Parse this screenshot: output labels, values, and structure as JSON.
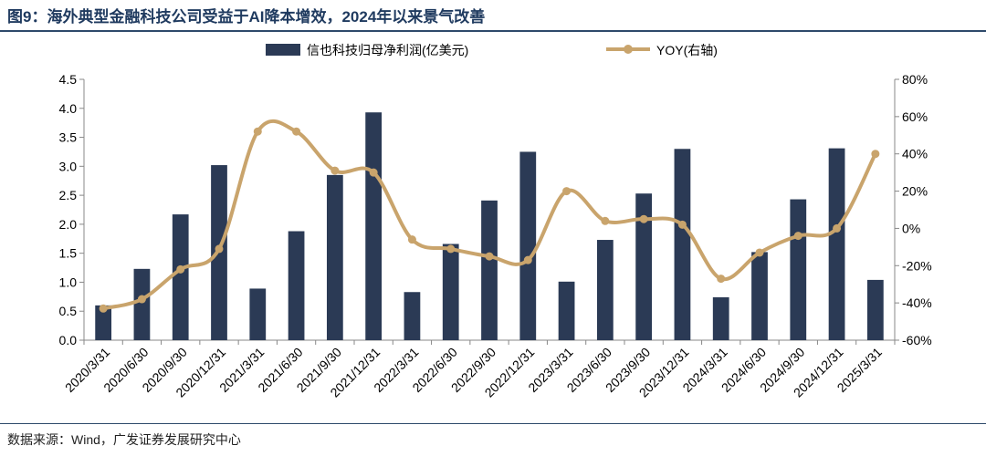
{
  "page": {
    "title": "图9：海外典型金融科技公司受益于AI降本增效，2024年以来景气改善",
    "source": "数据来源：Wind，广发证券发展研究中心"
  },
  "chart_data": {
    "type": "bar+line",
    "title": "图9：海外典型金融科技公司受益于AI降本增效，2024年以来景气改善",
    "categories": [
      "2020/3/31",
      "2020/6/30",
      "2020/9/30",
      "2020/12/31",
      "2021/3/31",
      "2021/6/30",
      "2021/9/30",
      "2021/12/31",
      "2022/3/31",
      "2022/6/30",
      "2022/9/30",
      "2022/12/31",
      "2023/3/31",
      "2023/6/30",
      "2023/9/30",
      "2023/12/31",
      "2024/3/31",
      "2024/6/30",
      "2024/9/30",
      "2024/12/31",
      "2025/3/31"
    ],
    "series": [
      {
        "name": "信也科技归母净利润(亿美元)",
        "type": "bar",
        "axis": "left",
        "color": "#2b3a55",
        "values": [
          0.6,
          1.23,
          2.17,
          3.02,
          0.89,
          1.88,
          2.85,
          3.93,
          0.83,
          1.66,
          2.41,
          3.25,
          1.01,
          1.73,
          2.53,
          3.3,
          0.74,
          1.52,
          2.43,
          3.31,
          1.04
        ]
      },
      {
        "name": "YOY(右轴)",
        "type": "line",
        "axis": "right",
        "color": "#c9a46c",
        "values": [
          -43,
          -38,
          -22,
          -11,
          52,
          52,
          31,
          30,
          -6,
          -11,
          -15,
          -17,
          20,
          4,
          5,
          2,
          -27,
          -13,
          -4,
          0,
          40
        ]
      }
    ],
    "y_left": {
      "min": 0,
      "max": 4.5,
      "ticks": [
        "0.0",
        "0.5",
        "1.0",
        "1.5",
        "2.0",
        "2.5",
        "3.0",
        "3.5",
        "4.0",
        "4.5"
      ]
    },
    "y_right": {
      "min": -60,
      "max": 80,
      "ticks": [
        "-60%",
        "-40%",
        "-20%",
        "0%",
        "20%",
        "40%",
        "60%",
        "80%"
      ]
    },
    "legend": [
      "信也科技归母净利润(亿美元)",
      "YOY(右轴)"
    ],
    "legend_position": "top-center",
    "grid": false
  }
}
